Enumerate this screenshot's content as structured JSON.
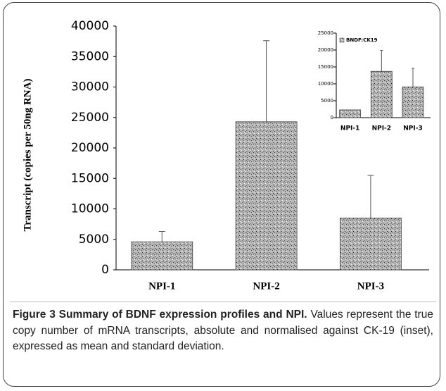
{
  "chart_data": [
    {
      "type": "bar",
      "ylabel": "Transcript (copies per 50ng RNA)",
      "categories": [
        "NPI-1",
        "NPI-2",
        "NPI-3"
      ],
      "values": [
        4600,
        24300,
        8500
      ],
      "errors": [
        1700,
        13300,
        7000
      ],
      "color": "#8a8a8a",
      "ylim": [
        0,
        40000
      ],
      "yticks": [
        0,
        5000,
        10000,
        15000,
        20000,
        25000,
        30000,
        35000,
        40000
      ]
    },
    {
      "type": "bar",
      "legend": "BNDF:CK19",
      "legend_position": "upper left",
      "categories": [
        "NPI-1",
        "NPI-2",
        "NPI-3"
      ],
      "values": [
        2300,
        13700,
        9100
      ],
      "errors": [
        null,
        6200,
        5500
      ],
      "color": "#8a8a8a",
      "ylim": [
        0,
        25000
      ],
      "yticks": [
        0,
        5000,
        10000,
        15000,
        20000,
        25000
      ]
    }
  ],
  "caption": {
    "title": "Figure 3 Summary of BDNF expression profiles and NPI.",
    "text": "Values represent the true copy number of mRNA transcripts, absolute and normalised against CK-19 (inset), expressed as mean and standard deviation."
  }
}
